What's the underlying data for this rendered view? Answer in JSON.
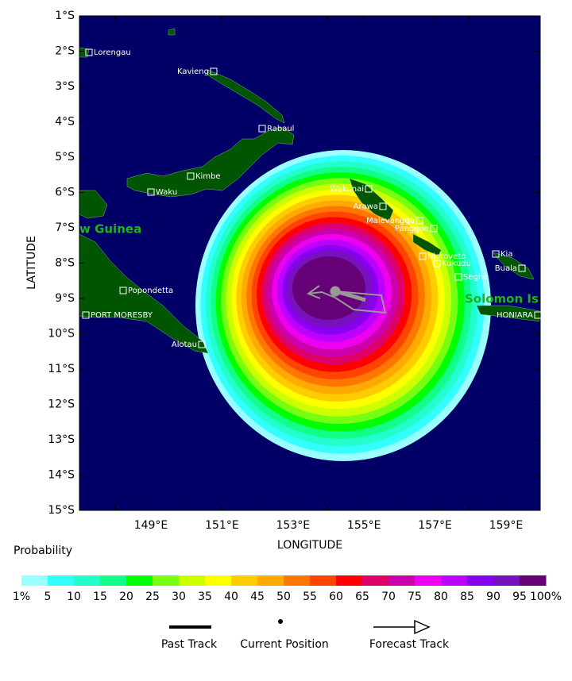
{
  "axes": {
    "y_label": "LATITUDE",
    "x_label": "LONGITUDE",
    "y_ticks": [
      "1°S",
      "2°S",
      "3°S",
      "4°S",
      "5°S",
      "6°S",
      "7°S",
      "8°S",
      "9°S",
      "10°S",
      "11°S",
      "12°S",
      "13°S",
      "14°S",
      "15°S"
    ],
    "x_ticks": [
      "149°E",
      "151°E",
      "153°E",
      "155°E",
      "157°E",
      "159°E"
    ]
  },
  "places": [
    {
      "name": "Lorengau"
    },
    {
      "name": "Kavieng"
    },
    {
      "name": "Rabaul"
    },
    {
      "name": "Kimbe"
    },
    {
      "name": "Waku"
    },
    {
      "name": "Wakunai"
    },
    {
      "name": "Arawa"
    },
    {
      "name": "Malevangga"
    },
    {
      "name": "Panggoe"
    },
    {
      "name": "Njoroveto"
    },
    {
      "name": "Kukudu"
    },
    {
      "name": "Seghe"
    },
    {
      "name": "Kia"
    },
    {
      "name": "Buala"
    },
    {
      "name": "Popondetta"
    },
    {
      "name": "PORT MORESBY"
    },
    {
      "name": "Alotau"
    },
    {
      "name": "HONIARA"
    }
  ],
  "regions": [
    "w Guinea",
    "Solomon Is"
  ],
  "legend": {
    "title": "Probability",
    "colors": [
      "#99ffff",
      "#33ffff",
      "#22ffcc",
      "#11ff88",
      "#00ff00",
      "#77ff11",
      "#ccff00",
      "#ffff00",
      "#ffcc00",
      "#ffaa00",
      "#ff7700",
      "#ff4400",
      "#ff0000",
      "#dd0066",
      "#cc00aa",
      "#ee00ee",
      "#bb00ff",
      "#8800ee",
      "#7711bb",
      "#660077"
    ],
    "labels": [
      "1%",
      "5",
      "10",
      "15",
      "20",
      "25",
      "30",
      "35",
      "40",
      "45",
      "50",
      "55",
      "60",
      "65",
      "70",
      "75",
      "80",
      "85",
      "90",
      "95",
      "100%"
    ]
  },
  "track_legend": [
    "Past Track",
    "Current Position",
    "Forecast Track"
  ]
}
